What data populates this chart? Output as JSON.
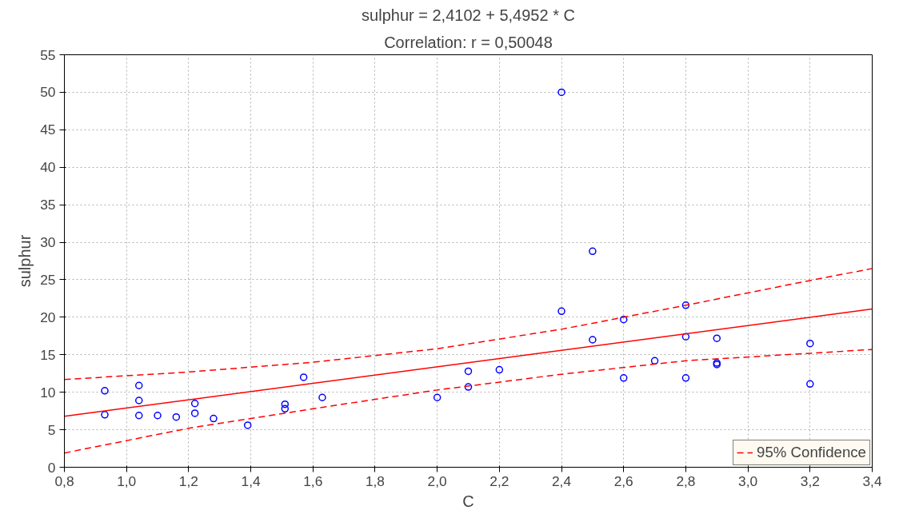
{
  "chart_data": {
    "type": "scatter",
    "title": "sulphur = 2,4102 + 5,4952 * C",
    "subtitle": "Correlation: r = 0,50048",
    "xlabel": "C",
    "ylabel": "sulphur",
    "xlim": [
      0.8,
      3.4
    ],
    "ylim": [
      0,
      55
    ],
    "xticks": [
      {
        "value": 0.8,
        "label": "0,8"
      },
      {
        "value": 1.0,
        "label": "1,0"
      },
      {
        "value": 1.2,
        "label": "1,2"
      },
      {
        "value": 1.4,
        "label": "1,4"
      },
      {
        "value": 1.6,
        "label": "1,6"
      },
      {
        "value": 1.8,
        "label": "1,8"
      },
      {
        "value": 2.0,
        "label": "2,0"
      },
      {
        "value": 2.2,
        "label": "2,2"
      },
      {
        "value": 2.4,
        "label": "2,4"
      },
      {
        "value": 2.6,
        "label": "2,6"
      },
      {
        "value": 2.8,
        "label": "2,8"
      },
      {
        "value": 3.0,
        "label": "3,0"
      },
      {
        "value": 3.2,
        "label": "3,2"
      },
      {
        "value": 3.4,
        "label": "3,4"
      }
    ],
    "yticks": [
      0,
      5,
      10,
      15,
      20,
      25,
      30,
      35,
      40,
      45,
      50,
      55
    ],
    "grid": true,
    "legend": "bottom right",
    "series": [
      {
        "color": "#0000ff",
        "marker": "circle",
        "x": [
          0.93,
          0.93,
          1.04,
          1.04,
          1.04,
          1.1,
          1.16,
          1.22,
          1.22,
          1.28,
          1.39,
          1.51,
          1.51,
          1.57,
          1.63,
          2.0,
          2.1,
          2.1,
          2.2,
          2.4,
          2.5,
          2.4,
          2.8,
          2.6,
          2.5,
          2.8,
          2.9,
          3.2,
          2.7,
          2.9,
          2.9,
          2.6,
          2.8,
          3.2
        ],
        "values": [
          10.2,
          7.0,
          10.9,
          8.9,
          6.9,
          6.9,
          6.7,
          8.5,
          7.2,
          6.5,
          5.6,
          8.4,
          7.8,
          12.0,
          9.3,
          9.3,
          12.8,
          10.7,
          13.0,
          50.0,
          28.8,
          20.8,
          21.6,
          19.7,
          17.0,
          17.4,
          17.2,
          16.5,
          14.2,
          13.9,
          13.7,
          11.9,
          11.9,
          11.1
        ]
      },
      {
        "type": "line",
        "color": "#ff0000",
        "line_style": "solid",
        "marker": "none",
        "x": [
          0.8,
          3.4
        ],
        "values": [
          6.8,
          21.1
        ]
      },
      {
        "type": "line",
        "color": "#ff0000",
        "line_style": "dashed",
        "marker": "none",
        "name": "95% Confidence",
        "x": [
          0.8,
          1.2,
          1.6,
          2.0,
          2.4,
          2.8,
          3.2,
          3.4
        ],
        "values": [
          11.7,
          12.7,
          14.0,
          15.8,
          18.4,
          21.6,
          24.9,
          26.5
        ]
      },
      {
        "type": "line",
        "color": "#ff0000",
        "line_style": "dashed",
        "marker": "none",
        "x": [
          0.8,
          1.2,
          1.6,
          2.0,
          2.4,
          2.8,
          3.2,
          3.4
        ],
        "values": [
          1.9,
          5.2,
          7.8,
          10.3,
          12.4,
          14.2,
          15.2,
          15.7
        ]
      }
    ]
  }
}
